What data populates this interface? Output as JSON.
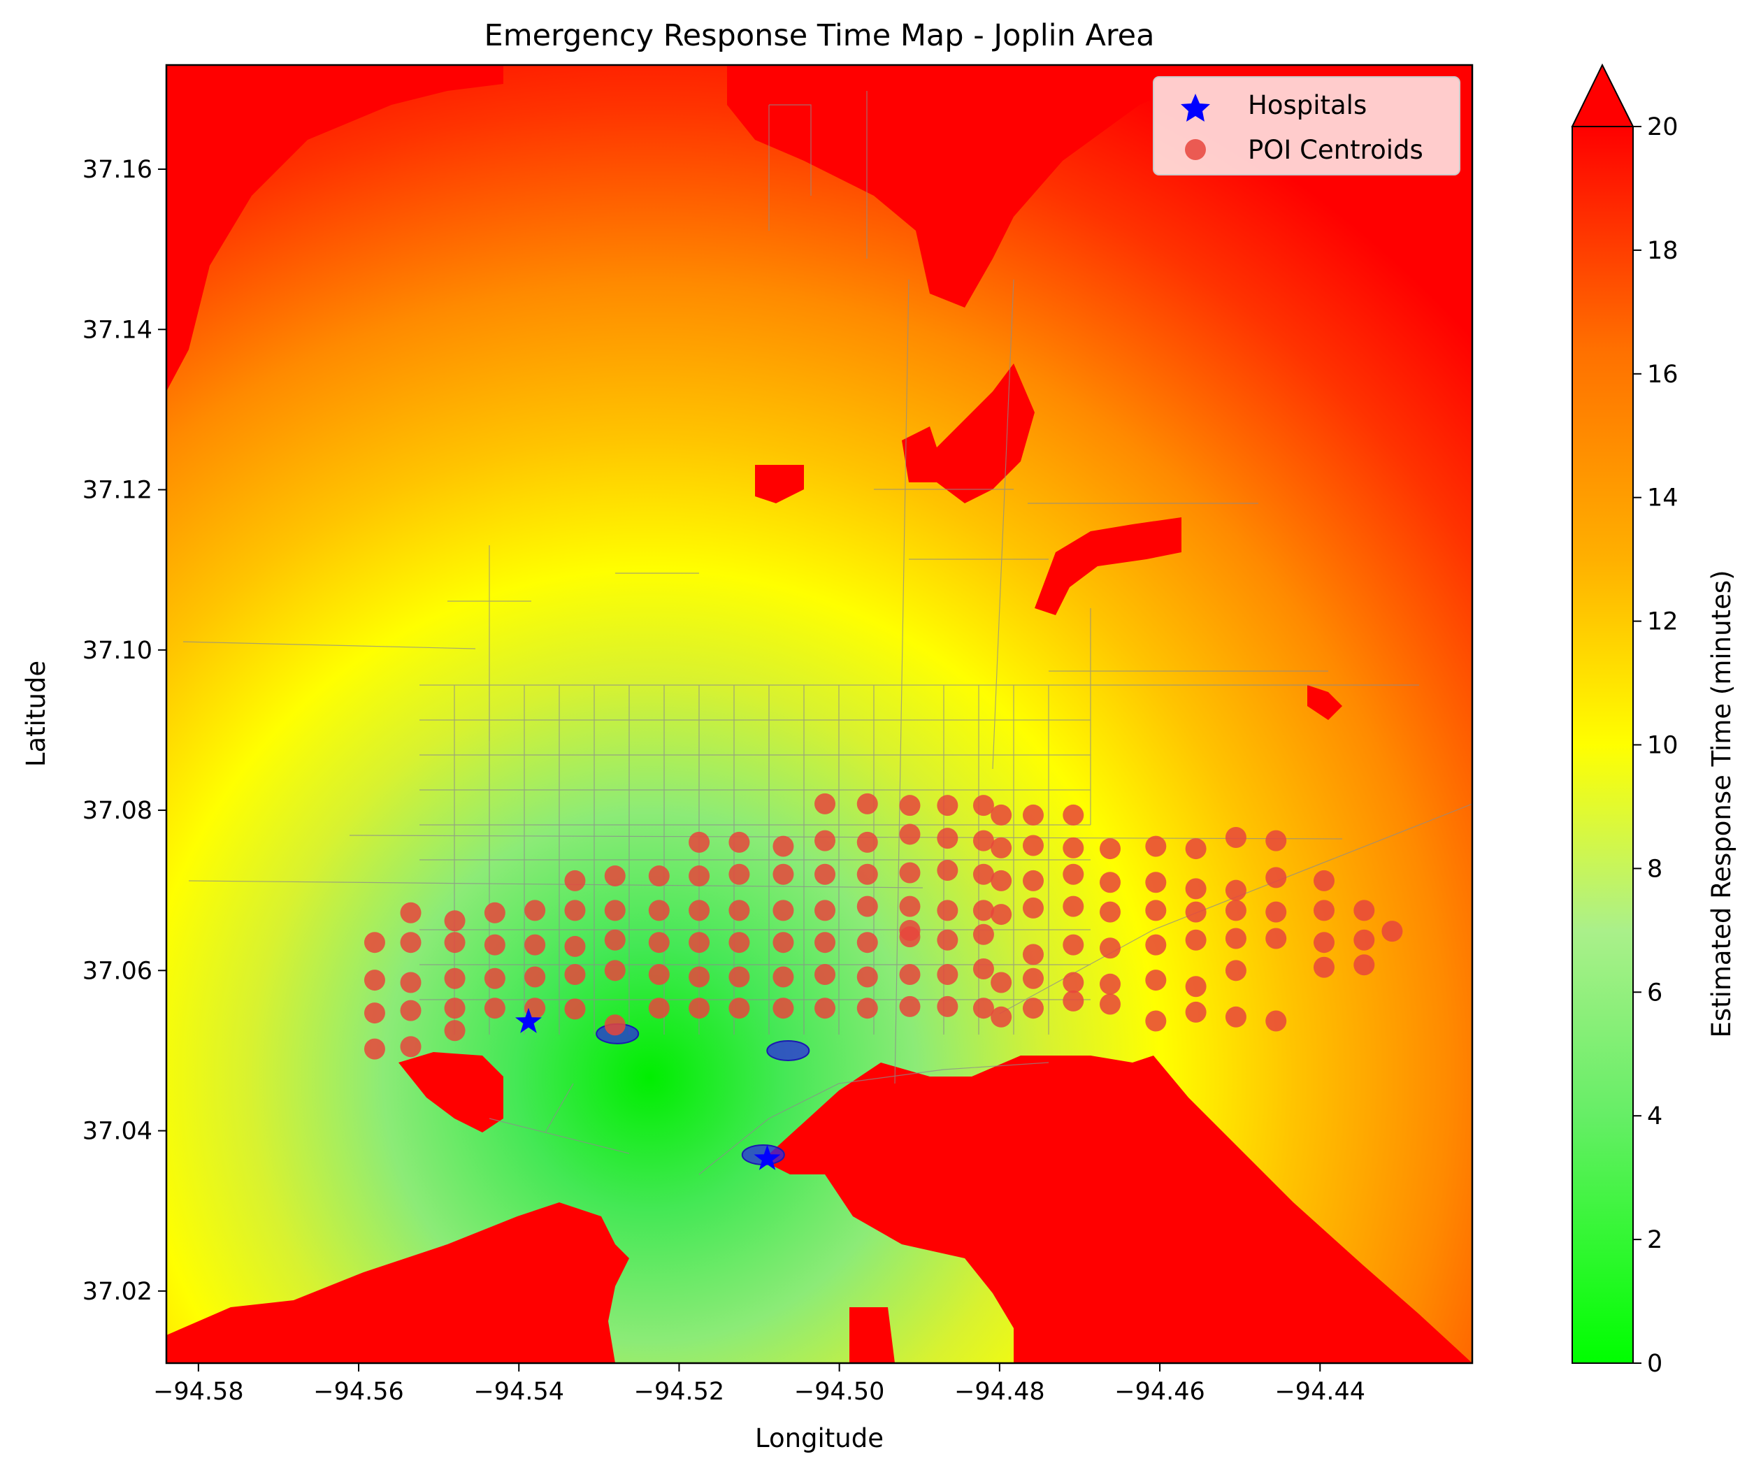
{
  "title": "Emergency Response Time Map - Joplin Area",
  "xlabel": "Longitude",
  "ylabel": "Latitude",
  "x_ticks": [
    "−94.58",
    "−94.56",
    "−94.54",
    "−94.52",
    "−94.50",
    "−94.48",
    "−94.46",
    "−94.44"
  ],
  "y_ticks": [
    "37.02",
    "37.04",
    "37.06",
    "37.08",
    "37.10",
    "37.12",
    "37.14",
    "37.16"
  ],
  "legend": {
    "hospitals": "Hospitals",
    "poi": "POI Centroids",
    "placement": "top-right"
  },
  "colorbar": {
    "label": "Estimated Response Time (minutes)",
    "ticks": [
      "0",
      "2",
      "4",
      "6",
      "8",
      "10",
      "12",
      "14",
      "16",
      "18",
      "20"
    ],
    "min": 0,
    "max": 20,
    "extend": "max",
    "colors": [
      "#00ff00",
      "#66ee66",
      "#aaf08a",
      "#ffff00",
      "#ffb000",
      "#ff7000",
      "#ff0000"
    ]
  },
  "colors": {
    "hospital": "#0000ff",
    "poi": "#e8453c",
    "roads": "#8c8c8c",
    "frame": "#000000"
  },
  "chart_data": {
    "type": "scatter",
    "xlim": [
      -94.584,
      -94.421
    ],
    "ylim": [
      37.011,
      37.173
    ],
    "grid": false,
    "hospitals": [
      {
        "x": -94.5388,
        "y": 37.0536
      },
      {
        "x": -94.509,
        "y": 37.0365
      }
    ],
    "hospital_areas": [
      {
        "x": -94.5277,
        "y": 37.0521
      },
      {
        "x": -94.5064,
        "y": 37.05
      },
      {
        "x": -94.5095,
        "y": 37.037
      }
    ],
    "response_field": [
      {
        "x": -94.527,
        "y": 37.051,
        "minutes": 1.5
      },
      {
        "x": -94.508,
        "y": 37.04,
        "minutes": 2.0
      },
      {
        "x": -94.54,
        "y": 37.055,
        "minutes": 3.0
      },
      {
        "x": -94.56,
        "y": 37.11,
        "minutes": 11.0
      },
      {
        "x": -94.43,
        "y": 37.08,
        "minutes": 13.0
      },
      {
        "x": -94.55,
        "y": 37.02,
        "minutes": 20.0
      },
      {
        "x": -94.45,
        "y": 37.03,
        "minutes": 20.0
      },
      {
        "x": -94.57,
        "y": 37.165,
        "minutes": 20.0
      },
      {
        "x": -94.44,
        "y": 37.16,
        "minutes": 20.0
      }
    ],
    "poi_columns": [
      {
        "x": -94.558,
        "y": [
          37.0635,
          37.0588,
          37.0547,
          37.0502
        ]
      },
      {
        "x": -94.5535,
        "y": [
          37.0672,
          37.0635,
          37.0585,
          37.055,
          37.0505
        ]
      },
      {
        "x": -94.548,
        "y": [
          37.0662,
          37.0635,
          37.059,
          37.0553,
          37.0525
        ]
      },
      {
        "x": -94.543,
        "y": [
          37.0672,
          37.0632,
          37.059,
          37.0553
        ]
      },
      {
        "x": -94.538,
        "y": [
          37.0675,
          37.0632,
          37.0592,
          37.0553
        ]
      },
      {
        "x": -94.533,
        "y": [
          37.0712,
          37.0675,
          37.063,
          37.0595,
          37.0552
        ]
      },
      {
        "x": -94.528,
        "y": [
          37.0718,
          37.0675,
          37.0638,
          37.06,
          37.0532
        ]
      },
      {
        "x": -94.5225,
        "y": [
          37.0718,
          37.0675,
          37.0635,
          37.0595,
          37.0553
        ]
      },
      {
        "x": -94.5175,
        "y": [
          37.076,
          37.0718,
          37.0675,
          37.0635,
          37.0592,
          37.0553
        ]
      },
      {
        "x": -94.5125,
        "y": [
          37.076,
          37.072,
          37.0675,
          37.0635,
          37.0592,
          37.0553
        ]
      },
      {
        "x": -94.507,
        "y": [
          37.0755,
          37.072,
          37.0675,
          37.0635,
          37.0592,
          37.0553
        ]
      },
      {
        "x": -94.5018,
        "y": [
          37.0808,
          37.0762,
          37.072,
          37.0675,
          37.0635,
          37.0595,
          37.0553
        ]
      },
      {
        "x": -94.4965,
        "y": [
          37.0808,
          37.076,
          37.072,
          37.068,
          37.0635,
          37.0592,
          37.0553
        ]
      },
      {
        "x": -94.4912,
        "y": [
          37.0806,
          37.077,
          37.0722,
          37.068,
          37.0642,
          37.065,
          37.0595,
          37.0555
        ]
      },
      {
        "x": -94.4865,
        "y": [
          37.0806,
          37.0765,
          37.0725,
          37.0675,
          37.0638,
          37.0595,
          37.0555
        ]
      },
      {
        "x": -94.482,
        "y": [
          37.0806,
          37.0762,
          37.072,
          37.0675,
          37.0645,
          37.0602,
          37.0553
        ]
      },
      {
        "x": -94.4798,
        "y": [
          37.0794,
          37.0753,
          37.0712,
          37.067,
          37.0585,
          37.0542
        ]
      },
      {
        "x": -94.4758,
        "y": [
          37.0794,
          37.0756,
          37.0712,
          37.0678,
          37.062,
          37.059,
          37.0553
        ]
      },
      {
        "x": -94.4708,
        "y": [
          37.0794,
          37.0753,
          37.072,
          37.068,
          37.0632,
          37.0585,
          37.0562
        ]
      },
      {
        "x": -94.4662,
        "y": [
          37.0752,
          37.071,
          37.0673,
          37.0628,
          37.0583,
          37.0558
        ]
      },
      {
        "x": -94.4605,
        "y": [
          37.0755,
          37.071,
          37.0675,
          37.0632,
          37.0588,
          37.0537
        ]
      },
      {
        "x": -94.4555,
        "y": [
          37.0752,
          37.0702,
          37.0673,
          37.0638,
          37.058,
          37.0548
        ]
      },
      {
        "x": -94.4505,
        "y": [
          37.0766,
          37.07,
          37.0675,
          37.064,
          37.06,
          37.0542
        ]
      },
      {
        "x": -94.4455,
        "y": [
          37.0762,
          37.0716,
          37.0673,
          37.064,
          37.0537
        ]
      },
      {
        "x": -94.4395,
        "y": [
          37.0712,
          37.0675,
          37.0635,
          37.0604
        ]
      },
      {
        "x": -94.4345,
        "y": [
          37.0675,
          37.0638,
          37.0607
        ]
      },
      {
        "x": -94.431,
        "y": [
          37.0649
        ]
      }
    ]
  }
}
